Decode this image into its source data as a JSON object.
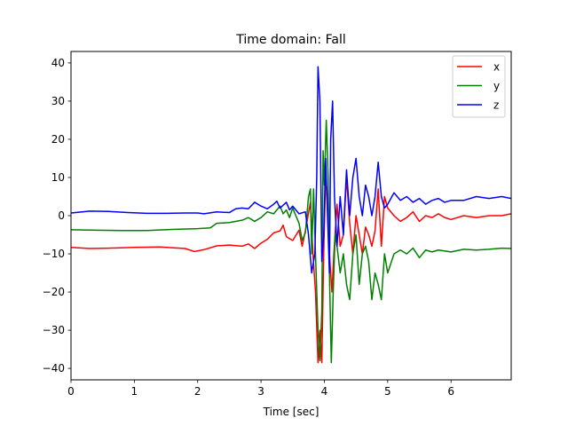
{
  "chart_data": {
    "type": "line",
    "title": "Time domain: Fall",
    "xlabel": "Time [sec]",
    "ylabel": "",
    "xlim": [
      0,
      6.95
    ],
    "ylim": [
      -43,
      43
    ],
    "xticks": [
      0,
      1,
      2,
      3,
      4,
      5,
      6
    ],
    "yticks": [
      -40,
      -30,
      -20,
      -10,
      0,
      10,
      20,
      30,
      40
    ],
    "grid": false,
    "legend_position": "top-right",
    "series": [
      {
        "name": "x",
        "color": "#ff0000",
        "points": [
          [
            0,
            -8.3
          ],
          [
            0.3,
            -8.6
          ],
          [
            0.6,
            -8.5
          ],
          [
            1.0,
            -8.3
          ],
          [
            1.4,
            -8.2
          ],
          [
            1.8,
            -8.6
          ],
          [
            1.95,
            -9.4
          ],
          [
            2.1,
            -8.9
          ],
          [
            2.3,
            -7.9
          ],
          [
            2.5,
            -7.7
          ],
          [
            2.7,
            -8.0
          ],
          [
            2.8,
            -7.4
          ],
          [
            2.9,
            -8.6
          ],
          [
            3.0,
            -7.2
          ],
          [
            3.1,
            -6.2
          ],
          [
            3.2,
            -4.5
          ],
          [
            3.3,
            -4.0
          ],
          [
            3.35,
            -2.5
          ],
          [
            3.4,
            -5.5
          ],
          [
            3.5,
            -6.5
          ],
          [
            3.6,
            -3.8
          ],
          [
            3.65,
            -8.0
          ],
          [
            3.7,
            -4.0
          ],
          [
            3.78,
            3.5
          ],
          [
            3.82,
            -10.0
          ],
          [
            3.86,
            -20.0
          ],
          [
            3.9,
            -38.5
          ],
          [
            3.93,
            -30.0
          ],
          [
            3.96,
            -38.5
          ],
          [
            3.99,
            -10.0
          ],
          [
            4.02,
            10.0
          ],
          [
            4.05,
            5.0
          ],
          [
            4.08,
            -10.0
          ],
          [
            4.12,
            -20.0
          ],
          [
            4.15,
            -10.0
          ],
          [
            4.2,
            3.0
          ],
          [
            4.25,
            -8.0
          ],
          [
            4.3,
            -5.0
          ],
          [
            4.35,
            10.0
          ],
          [
            4.4,
            -2.0
          ],
          [
            4.45,
            -10.0
          ],
          [
            4.5,
            0.0
          ],
          [
            4.55,
            -5.0
          ],
          [
            4.6,
            -10.0
          ],
          [
            4.65,
            -3.0
          ],
          [
            4.7,
            -5.0
          ],
          [
            4.75,
            -8.0
          ],
          [
            4.8,
            -4.0
          ],
          [
            4.85,
            7.0
          ],
          [
            4.9,
            -8.0
          ],
          [
            4.95,
            5.0
          ],
          [
            5.0,
            2.0
          ],
          [
            5.1,
            0.0
          ],
          [
            5.2,
            -1.5
          ],
          [
            5.3,
            -0.5
          ],
          [
            5.4,
            1.0
          ],
          [
            5.5,
            -1.5
          ],
          [
            5.6,
            0.0
          ],
          [
            5.7,
            -0.5
          ],
          [
            5.8,
            0.5
          ],
          [
            5.9,
            -0.5
          ],
          [
            6.0,
            -1.0
          ],
          [
            6.2,
            0.0
          ],
          [
            6.4,
            -0.5
          ],
          [
            6.6,
            0.0
          ],
          [
            6.8,
            0.0
          ],
          [
            6.95,
            0.5
          ]
        ]
      },
      {
        "name": "y",
        "color": "#008000",
        "points": [
          [
            0,
            -3.7
          ],
          [
            0.4,
            -3.8
          ],
          [
            0.8,
            -3.9
          ],
          [
            1.2,
            -3.9
          ],
          [
            1.6,
            -3.6
          ],
          [
            2.0,
            -3.4
          ],
          [
            2.2,
            -3.2
          ],
          [
            2.3,
            -2.0
          ],
          [
            2.5,
            -1.8
          ],
          [
            2.7,
            -1.2
          ],
          [
            2.8,
            -0.5
          ],
          [
            2.9,
            -1.5
          ],
          [
            3.0,
            -0.5
          ],
          [
            3.1,
            1.0
          ],
          [
            3.2,
            0.5
          ],
          [
            3.3,
            2.5
          ],
          [
            3.35,
            0.5
          ],
          [
            3.4,
            1.5
          ],
          [
            3.45,
            -0.5
          ],
          [
            3.5,
            2.0
          ],
          [
            3.6,
            -2.0
          ],
          [
            3.65,
            -6.5
          ],
          [
            3.7,
            -4.5
          ],
          [
            3.75,
            5.0
          ],
          [
            3.78,
            7.0
          ],
          [
            3.8,
            -10.0
          ],
          [
            3.83,
            7.0
          ],
          [
            3.86,
            -10.0
          ],
          [
            3.9,
            -30.0
          ],
          [
            3.93,
            -38.0
          ],
          [
            3.96,
            -25.0
          ],
          [
            3.98,
            17.0
          ],
          [
            4.0,
            8.0
          ],
          [
            4.03,
            25.0
          ],
          [
            4.06,
            10.0
          ],
          [
            4.08,
            -15.0
          ],
          [
            4.11,
            -38.5
          ],
          [
            4.14,
            -20.0
          ],
          [
            4.17,
            -5.0
          ],
          [
            4.2,
            -8.0
          ],
          [
            4.25,
            -15.0
          ],
          [
            4.3,
            -10.0
          ],
          [
            4.35,
            -18.0
          ],
          [
            4.4,
            -22.0
          ],
          [
            4.45,
            -10.0
          ],
          [
            4.5,
            -5.0
          ],
          [
            4.55,
            -18.0
          ],
          [
            4.6,
            -10.0
          ],
          [
            4.65,
            -8.0
          ],
          [
            4.7,
            -12.0
          ],
          [
            4.75,
            -22.0
          ],
          [
            4.8,
            -15.0
          ],
          [
            4.85,
            -18.0
          ],
          [
            4.9,
            -22.0
          ],
          [
            4.95,
            -10.0
          ],
          [
            5.0,
            -15.0
          ],
          [
            5.1,
            -10.0
          ],
          [
            5.2,
            -9.0
          ],
          [
            5.3,
            -10.0
          ],
          [
            5.4,
            -8.5
          ],
          [
            5.5,
            -11.0
          ],
          [
            5.6,
            -9.0
          ],
          [
            5.7,
            -9.5
          ],
          [
            5.8,
            -9.0
          ],
          [
            6.0,
            -9.5
          ],
          [
            6.2,
            -8.8
          ],
          [
            6.4,
            -9.0
          ],
          [
            6.6,
            -8.8
          ],
          [
            6.8,
            -8.5
          ],
          [
            6.95,
            -8.6
          ]
        ]
      },
      {
        "name": "z",
        "color": "#0000ff",
        "points": [
          [
            0,
            0.7
          ],
          [
            0.3,
            1.2
          ],
          [
            0.6,
            1.1
          ],
          [
            0.9,
            0.8
          ],
          [
            1.2,
            0.6
          ],
          [
            1.5,
            0.6
          ],
          [
            1.8,
            0.7
          ],
          [
            2.0,
            0.7
          ],
          [
            2.1,
            0.5
          ],
          [
            2.3,
            1.0
          ],
          [
            2.5,
            0.8
          ],
          [
            2.6,
            1.8
          ],
          [
            2.7,
            2.0
          ],
          [
            2.8,
            1.8
          ],
          [
            2.9,
            3.5
          ],
          [
            3.0,
            2.5
          ],
          [
            3.1,
            1.8
          ],
          [
            3.2,
            3.0
          ],
          [
            3.25,
            3.8
          ],
          [
            3.3,
            2.0
          ],
          [
            3.4,
            3.5
          ],
          [
            3.45,
            1.5
          ],
          [
            3.5,
            2.5
          ],
          [
            3.6,
            0.5
          ],
          [
            3.7,
            1.0
          ],
          [
            3.75,
            -5.0
          ],
          [
            3.8,
            -15.0
          ],
          [
            3.85,
            -10.0
          ],
          [
            3.88,
            10.0
          ],
          [
            3.9,
            39.0
          ],
          [
            3.93,
            30.0
          ],
          [
            3.96,
            -12.0
          ],
          [
            3.99,
            -5.0
          ],
          [
            4.02,
            15.0
          ],
          [
            4.05,
            0.0
          ],
          [
            4.08,
            -15.0
          ],
          [
            4.1,
            20.0
          ],
          [
            4.13,
            30.0
          ],
          [
            4.16,
            5.0
          ],
          [
            4.2,
            -8.0
          ],
          [
            4.25,
            5.0
          ],
          [
            4.3,
            -5.0
          ],
          [
            4.35,
            12.0
          ],
          [
            4.4,
            0.0
          ],
          [
            4.45,
            10.0
          ],
          [
            4.5,
            15.0
          ],
          [
            4.55,
            5.0
          ],
          [
            4.6,
            0.0
          ],
          [
            4.65,
            8.0
          ],
          [
            4.7,
            5.0
          ],
          [
            4.75,
            0.0
          ],
          [
            4.8,
            5.0
          ],
          [
            4.85,
            14.0
          ],
          [
            4.9,
            5.0
          ],
          [
            4.95,
            2.0
          ],
          [
            5.0,
            3.0
          ],
          [
            5.1,
            6.0
          ],
          [
            5.2,
            4.0
          ],
          [
            5.3,
            5.0
          ],
          [
            5.4,
            3.5
          ],
          [
            5.5,
            4.5
          ],
          [
            5.6,
            3.0
          ],
          [
            5.7,
            4.0
          ],
          [
            5.8,
            4.5
          ],
          [
            5.9,
            3.5
          ],
          [
            6.0,
            4.0
          ],
          [
            6.2,
            4.0
          ],
          [
            6.4,
            5.0
          ],
          [
            6.6,
            4.5
          ],
          [
            6.8,
            5.0
          ],
          [
            6.95,
            4.5
          ]
        ]
      }
    ]
  }
}
